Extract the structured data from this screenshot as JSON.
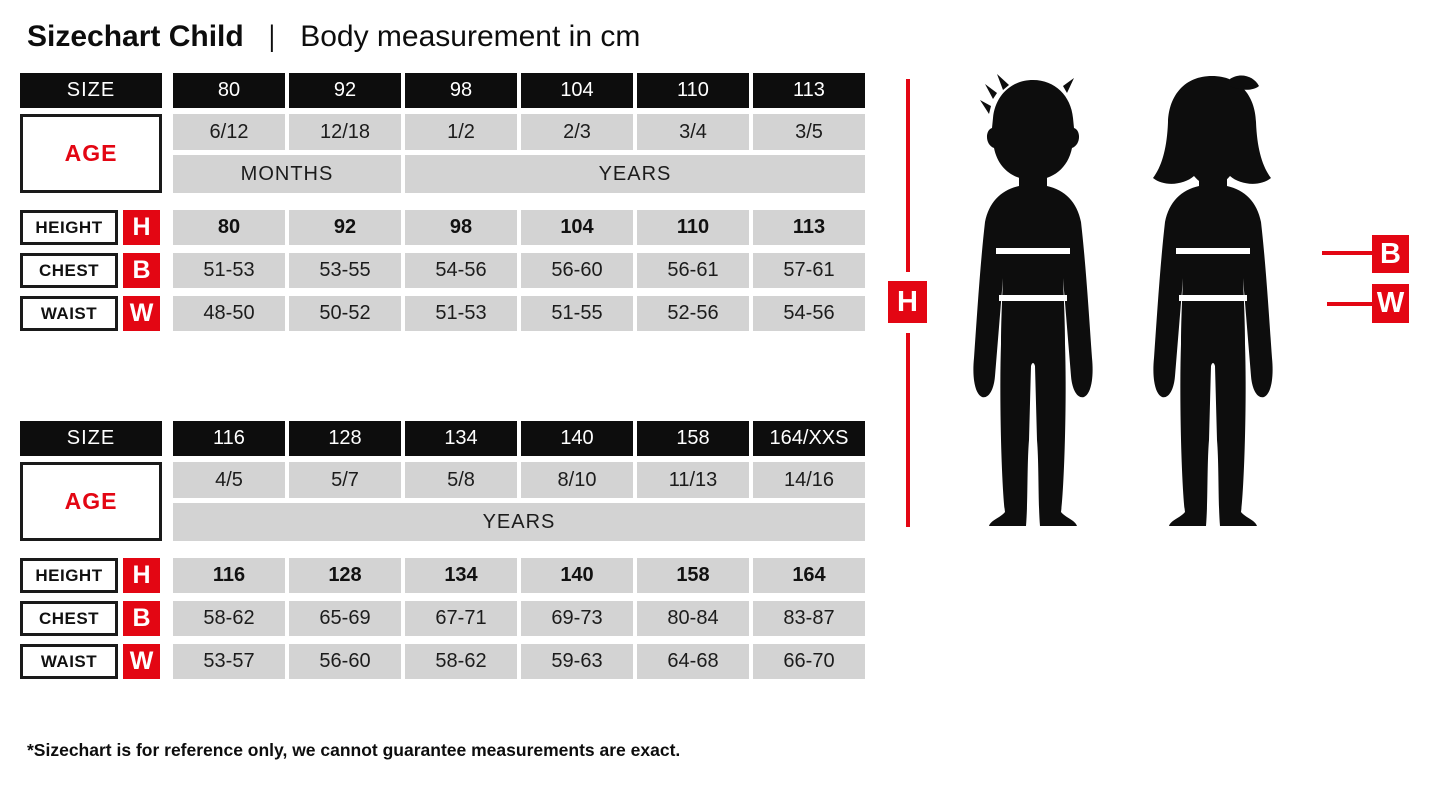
{
  "page": {
    "title": "Sizechart Child",
    "separator": "|",
    "subtitle": "Body measurement in cm",
    "footnote": "*Sizechart is for reference only, we cannot guarantee measurements are exact."
  },
  "legend": {
    "h": "H",
    "b": "B",
    "w": "W"
  },
  "colors": {
    "accent_red": "#e30613",
    "header_black": "#0d0d0d",
    "cell_gray": "#d3d3d3",
    "background": "#ffffff"
  },
  "chart_data": [
    {
      "type": "table",
      "title": "Sizechart Child — body measurement in cm (small sizes)",
      "row_labels": {
        "size": "SIZE",
        "age": "AGE",
        "height": "HEIGHT",
        "chest": "CHEST",
        "waist": "WAIST"
      },
      "measure_codes": {
        "height": "H",
        "chest": "B",
        "waist": "W"
      },
      "sizes": [
        "80",
        "92",
        "98",
        "104",
        "110",
        "113"
      ],
      "age_values": [
        "6/12",
        "12/18",
        "1/2",
        "2/3",
        "3/4",
        "3/5"
      ],
      "age_units": [
        {
          "label": "MONTHS",
          "span": 2
        },
        {
          "label": "YEARS",
          "span": 4
        }
      ],
      "height_cm": [
        "80",
        "92",
        "98",
        "104",
        "110",
        "113"
      ],
      "chest_cm": [
        "51-53",
        "53-55",
        "54-56",
        "56-60",
        "56-61",
        "57-61"
      ],
      "waist_cm": [
        "48-50",
        "50-52",
        "51-53",
        "51-55",
        "52-56",
        "54-56"
      ]
    },
    {
      "type": "table",
      "title": "Sizechart Child — body measurement in cm (large sizes)",
      "row_labels": {
        "size": "SIZE",
        "age": "AGE",
        "height": "HEIGHT",
        "chest": "CHEST",
        "waist": "WAIST"
      },
      "measure_codes": {
        "height": "H",
        "chest": "B",
        "waist": "W"
      },
      "sizes": [
        "116",
        "128",
        "134",
        "140",
        "158",
        "164/XXS"
      ],
      "age_values": [
        "4/5",
        "5/7",
        "5/8",
        "8/10",
        "11/13",
        "14/16"
      ],
      "age_units": [
        {
          "label": "YEARS",
          "span": 6
        }
      ],
      "height_cm": [
        "116",
        "128",
        "134",
        "140",
        "158",
        "164"
      ],
      "chest_cm": [
        "58-62",
        "65-69",
        "67-71",
        "69-73",
        "80-84",
        "83-87"
      ],
      "waist_cm": [
        "53-57",
        "56-60",
        "58-62",
        "59-63",
        "64-68",
        "66-70"
      ]
    }
  ]
}
